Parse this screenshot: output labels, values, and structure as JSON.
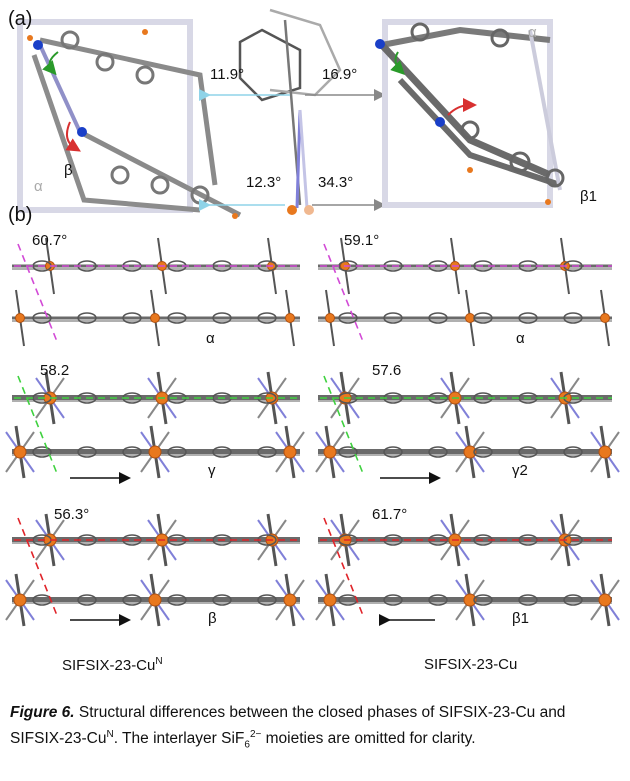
{
  "panels": {
    "a": {
      "tag": "(a)",
      "angles": [
        "11.9°",
        "16.9°",
        "12.3°",
        "34.3°"
      ],
      "labels": {
        "alpha_left": "α",
        "beta_left": "β",
        "alpha_right": "α",
        "beta1_right": "β1"
      }
    },
    "b": {
      "tag": "(b)",
      "rows": [
        {
          "left_angle": "60.7°",
          "left_phase": "α",
          "right_angle": "59.1°",
          "right_phase": "α",
          "line_color": "#d24ad6"
        },
        {
          "left_angle": "58.2",
          "left_phase": "γ",
          "right_angle": "57.6",
          "right_phase": "γ2",
          "line_color": "#3fd13f"
        },
        {
          "left_angle": "56.3°",
          "left_phase": "β",
          "right_angle": "61.7°",
          "right_phase": "β1",
          "line_color": "#e0242a"
        }
      ]
    },
    "mof_left": {
      "main": "SIFSIX-23-Cu",
      "sup": "N"
    },
    "mof_right": "SIFSIX-23-Cu"
  },
  "caption": {
    "label": "Figure 6.",
    "text_1": " Structural differences between the closed phases of SIFSIX-23-Cu and SIFSIX-23-Cu",
    "sup_n": "N",
    "text_2": ". The interlayer SiF",
    "sub_6": "6",
    "sup_charge": "2−",
    "text_3": " moieties are omitted for clarity."
  },
  "colors": {
    "accent_orange": "#e8781e",
    "framework_grey": "#7a7a7a",
    "ligand_blue": "#8080d8",
    "cyan_arrow": "#8fd3e8"
  }
}
